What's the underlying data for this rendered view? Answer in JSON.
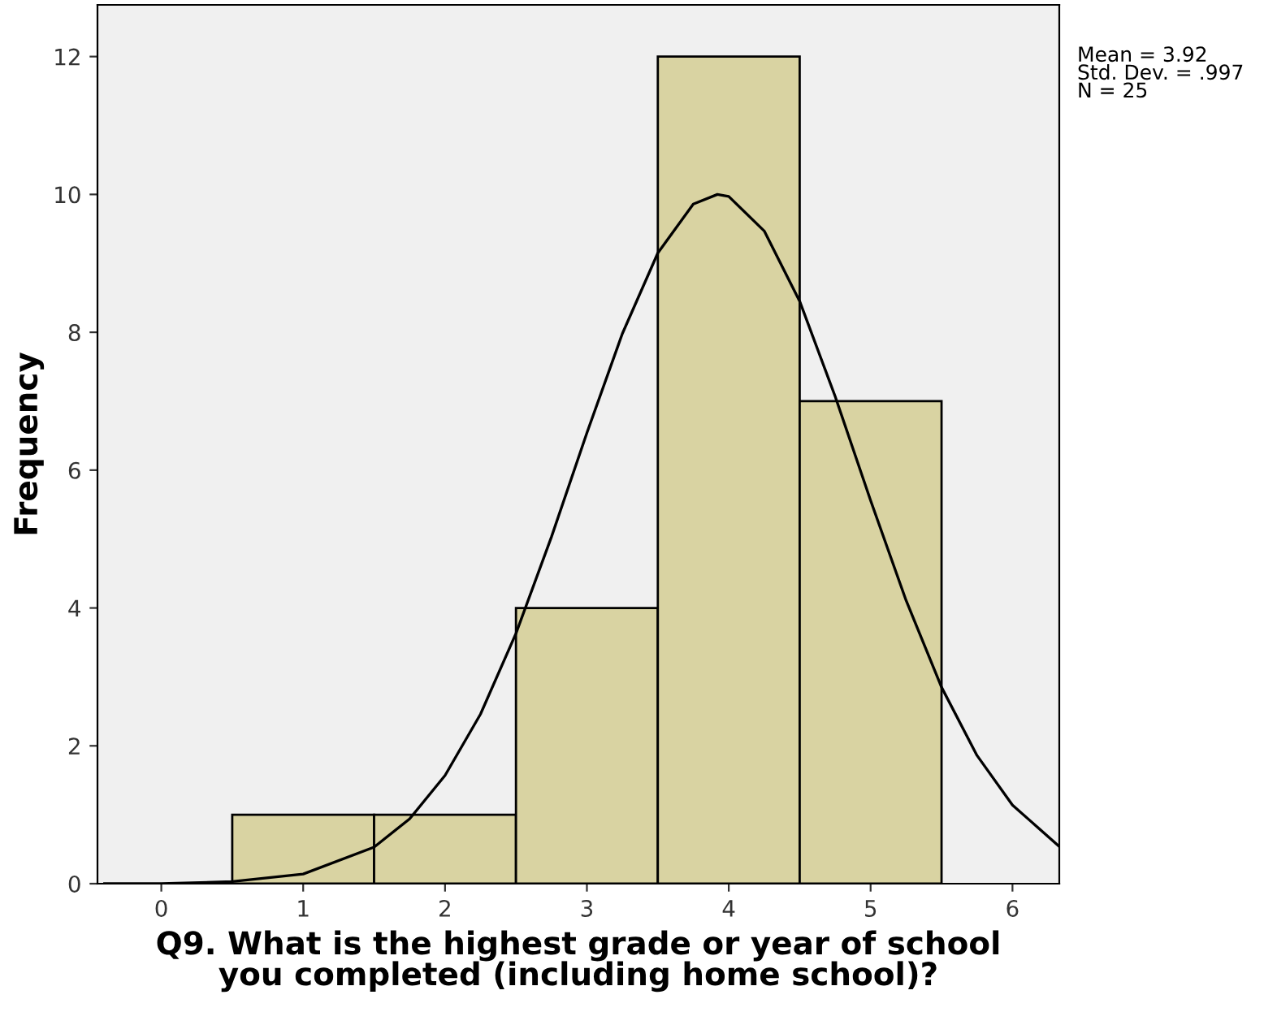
{
  "chart_data": {
    "type": "histogram",
    "xlabel": "Q9. What is the highest grade or year of school\nyou completed (including home school)?",
    "ylabel": "Frequency",
    "bins": [
      0.5,
      1.5,
      2.5,
      3.5,
      4.5,
      5.5
    ],
    "values": [
      1,
      1,
      4,
      12,
      7
    ],
    "color": "#d9d3a2",
    "series": [
      {
        "type": "line",
        "color": "#000000",
        "x": [
          -0.4,
          0,
          0.5,
          1,
          1.5,
          1.75,
          2,
          2.25,
          2.5,
          2.75,
          3,
          3.25,
          3.5,
          3.75,
          3.92,
          4,
          4.25,
          4.5,
          4.75,
          5,
          5.25,
          5.5,
          5.75,
          6,
          6.33
        ],
        "values": [
          0.0,
          0.0,
          0.03,
          0.14,
          0.53,
          0.94,
          1.57,
          2.46,
          3.63,
          5.03,
          6.54,
          7.98,
          9.15,
          9.86,
          10.0,
          9.97,
          9.47,
          8.45,
          7.07,
          5.56,
          4.11,
          2.85,
          1.86,
          1.14,
          0.54
        ]
      }
    ],
    "xlim": [
      -0.45,
      6.33
    ],
    "ylim": [
      0,
      12.75
    ],
    "xticks": [
      0,
      1,
      2,
      3,
      4,
      5,
      6
    ],
    "yticks": [
      0,
      2,
      4,
      6,
      8,
      10,
      12
    ],
    "annotations": [
      "Mean = 3.92",
      "Std. Dev. = .997",
      "N = 25"
    ],
    "grid": false,
    "legend": false
  }
}
